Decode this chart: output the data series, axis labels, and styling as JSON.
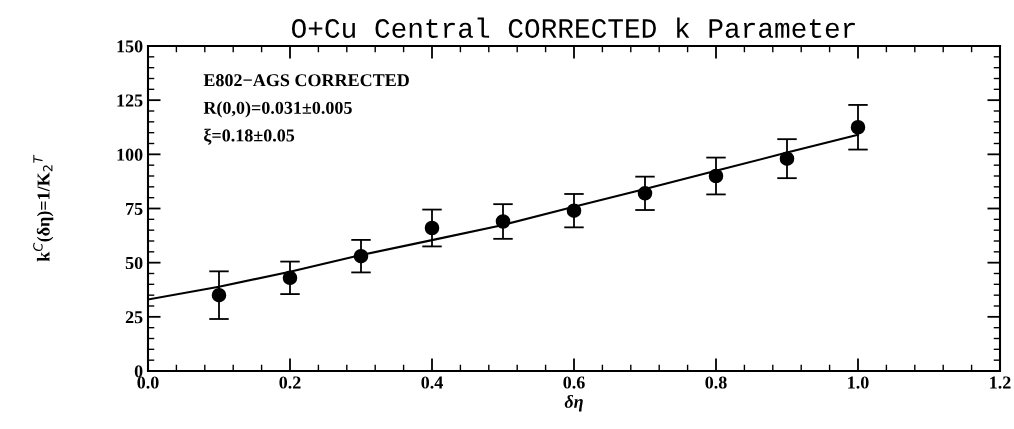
{
  "chart_data": {
    "type": "scatter",
    "title": "O+Cu Central CORRECTED k Parameter",
    "xlabel": "δη",
    "ylabel": "k$^{C}$(δη)=1/K$_{2}$$^{T}$",
    "annotations": [
      "E802−AGS CORRECTED",
      "R(0,0)=0.031±0.005",
      "ξ=0.18±0.05"
    ],
    "xlim": [
      0,
      1.2
    ],
    "xticks": [
      {
        "value": 0,
        "label": "0.0"
      },
      0.2,
      0.4,
      0.6,
      0.8,
      {
        "value": 1,
        "label": "1.0"
      },
      1.2
    ],
    "ylim": [
      0,
      150
    ],
    "yticks": [
      0,
      25,
      50,
      75,
      100,
      125,
      150
    ],
    "grid": false,
    "legend": false,
    "series": [
      {
        "marker": "circle",
        "color": "#000000",
        "x": [
          0.1,
          0.2,
          0.3,
          0.4,
          0.5,
          0.6,
          0.7,
          0.8,
          0.9,
          1.0
        ],
        "values": [
          35,
          43,
          53,
          66,
          69,
          74,
          82,
          90,
          98,
          112.5
        ],
        "errors": [
          11,
          7.5,
          7.5,
          8.5,
          8,
          7.7,
          7.7,
          8.5,
          9,
          10.3
        ]
      },
      {
        "type": "line",
        "marker": "none",
        "color": "#000000",
        "line_style": "solid",
        "x": [
          0,
          0.1,
          0.2,
          0.3,
          0.4,
          0.5,
          0.6,
          0.7,
          0.8,
          0.9,
          1.0
        ],
        "values": [
          33,
          38.9,
          45.8,
          53.5,
          60.4,
          67.4,
          75.8,
          84,
          92.4,
          100.8,
          109
        ]
      }
    ]
  }
}
